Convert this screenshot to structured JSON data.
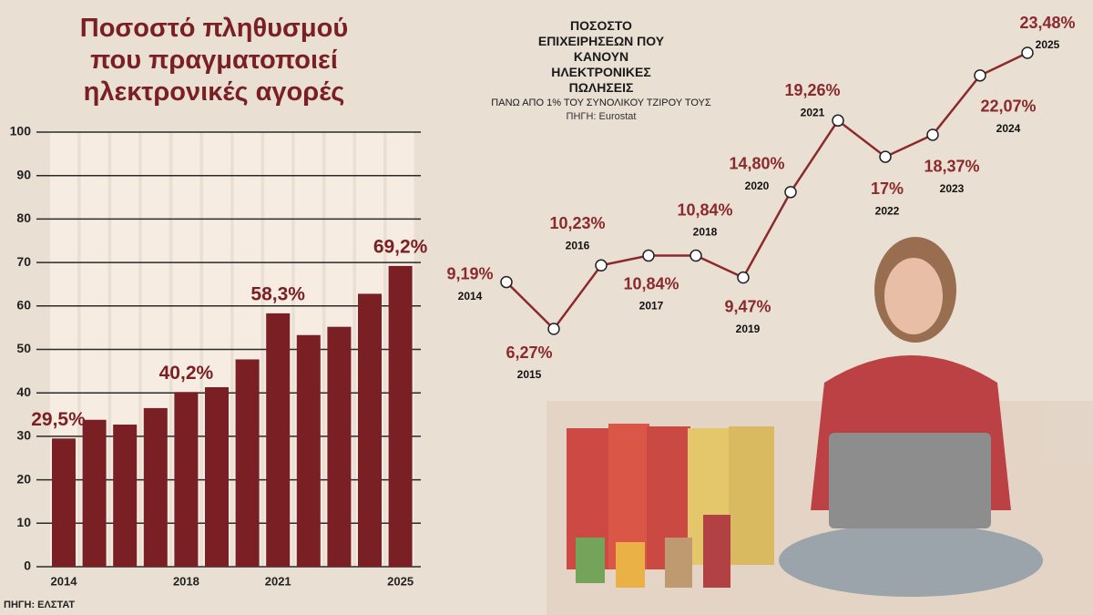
{
  "chart_data": [
    {
      "type": "bar",
      "title": "Ποσοστό πληθυσμού που πραγματοποιεί ηλεκτρονικές αγορές",
      "categories": [
        "2014",
        null,
        null,
        null,
        "2018",
        null,
        null,
        "2021",
        null,
        null,
        null,
        "2025"
      ],
      "values": [
        29.5,
        33.8,
        32.7,
        36.5,
        40.2,
        41.3,
        47.7,
        58.3,
        53.3,
        55.2,
        62.8,
        69.2
      ],
      "value_labels": [
        "29,5%",
        null,
        null,
        null,
        "40,2%",
        null,
        null,
        "58,3%",
        null,
        null,
        null,
        "69,2%"
      ],
      "color": "#7a1f24",
      "ylim": [
        0,
        100
      ],
      "yticks": [
        0,
        10,
        20,
        30,
        40,
        50,
        60,
        70,
        80,
        90,
        100
      ],
      "grid": true,
      "source": "ΠΗΓΗ: ΕΛΣΤΑΤ"
    },
    {
      "type": "line",
      "title": "ΠΟΣΟΣΤΟ ΕΠΙΧΕΙΡΗΣΕΩΝ ΠΟΥ ΚΑΝΟΥΝ ΗΛΕΚΤΡΟΝΙΚΕΣ ΠΩΛΗΣΕΙΣ",
      "subtitle": "ΠΑΝΩ ΑΠΟ 1% ΤΟΥ ΣΥΝΟΛΙΚΟΥ ΤΖΙΡΟΥ ΤΟΥΣ",
      "source": "ΠΗΓΗ: Eurostat",
      "categories": [
        "2014",
        "2015",
        "2016",
        "2017",
        "2018",
        "2019",
        "2020",
        "2021",
        "2022",
        "2023",
        "2024",
        "2025"
      ],
      "values": [
        9.19,
        6.27,
        10.23,
        10.84,
        10.84,
        9.47,
        14.8,
        19.26,
        17,
        18.37,
        22.07,
        23.48
      ],
      "value_labels": [
        "9,19%",
        "6,27%",
        "10,23%",
        "10,84%",
        "10,84%",
        "9,47%",
        "14,80%",
        "19,26%",
        "17%",
        "18,37%",
        "22,07%",
        "23,48%"
      ],
      "color": "#8b2a2c"
    }
  ]
}
